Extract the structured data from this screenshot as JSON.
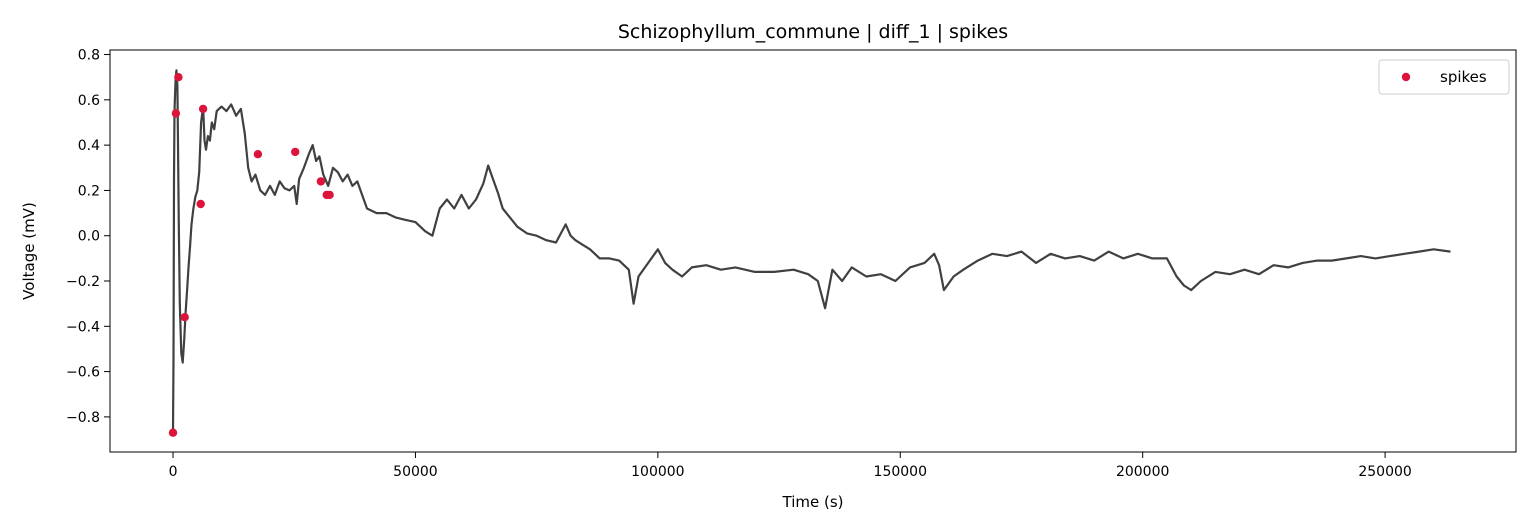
{
  "chart_data": {
    "type": "line",
    "title": "Schizophyllum_commune | diff_1 | spikes",
    "xlabel": "Time (s)",
    "ylabel": "Voltage (mV)",
    "xlim": [
      -13000,
      277000
    ],
    "ylim": [
      -0.955,
      0.82
    ],
    "xticks": [
      0,
      50000,
      100000,
      150000,
      200000,
      250000
    ],
    "xtick_labels": [
      "0",
      "50000",
      "100000",
      "150000",
      "200000",
      "250000"
    ],
    "yticks": [
      -0.8,
      -0.6,
      -0.4,
      -0.2,
      0.0,
      0.2,
      0.4,
      0.6,
      0.8
    ],
    "ytick_labels": [
      "−0.8",
      "−0.6",
      "−0.4",
      "−0.2",
      "0.0",
      "0.2",
      "0.4",
      "0.6",
      "0.8"
    ],
    "grid": false,
    "legend_position": "top-right",
    "series": [
      {
        "kind": "line",
        "color": "#404040",
        "x": [
          0,
          100,
          200,
          300,
          500,
          700,
          900,
          1000,
          1200,
          1400,
          1700,
          2000,
          2300,
          2600,
          2900,
          3200,
          3500,
          3800,
          4200,
          4600,
          5000,
          5400,
          5800,
          6200,
          6500,
          6800,
          7200,
          7600,
          8000,
          8500,
          9000,
          10000,
          11000,
          12000,
          13000,
          14000,
          14800,
          15500,
          16200,
          17000,
          18000,
          19000,
          20000,
          21000,
          22000,
          23000,
          24000,
          25000,
          25500,
          26000,
          27000,
          28000,
          28800,
          29500,
          30200,
          31000,
          32000,
          33000,
          34000,
          35000,
          36000,
          37000,
          38000,
          39000,
          40000,
          42000,
          44000,
          46000,
          48000,
          50000,
          52000,
          53500,
          55000,
          56500,
          58000,
          59500,
          61000,
          62500,
          64000,
          65000,
          66000,
          67000,
          68000,
          69500,
          71000,
          73000,
          75000,
          77000,
          79000,
          81000,
          82000,
          83000,
          84500,
          86000,
          88000,
          90000,
          92000,
          94000,
          95000,
          96000,
          98000,
          100000,
          101500,
          103000,
          105000,
          107000,
          110000,
          113000,
          116000,
          120000,
          124000,
          128000,
          131000,
          133000,
          134500,
          136000,
          138000,
          140000,
          143000,
          146000,
          149000,
          152000,
          155000,
          157000,
          158000,
          159000,
          161000,
          163000,
          166000,
          169000,
          172000,
          175000,
          178000,
          181000,
          184000,
          187000,
          190000,
          193000,
          196000,
          199000,
          202000,
          205000,
          207000,
          208500,
          210000,
          212000,
          215000,
          218000,
          221000,
          224000,
          227000,
          230000,
          233000,
          236000,
          239000,
          242000,
          245000,
          248000,
          251000,
          254000,
          257000,
          260000,
          263500
        ],
        "y": [
          -0.86,
          -0.55,
          0.25,
          0.55,
          0.68,
          0.73,
          0.66,
          0.45,
          0.05,
          -0.3,
          -0.52,
          -0.56,
          -0.46,
          -0.34,
          -0.24,
          -0.14,
          -0.05,
          0.05,
          0.12,
          0.17,
          0.2,
          0.28,
          0.5,
          0.57,
          0.42,
          0.38,
          0.44,
          0.42,
          0.5,
          0.47,
          0.55,
          0.57,
          0.55,
          0.58,
          0.53,
          0.56,
          0.45,
          0.3,
          0.24,
          0.27,
          0.2,
          0.18,
          0.22,
          0.18,
          0.24,
          0.21,
          0.2,
          0.22,
          0.14,
          0.25,
          0.3,
          0.36,
          0.4,
          0.33,
          0.35,
          0.27,
          0.22,
          0.3,
          0.28,
          0.24,
          0.27,
          0.22,
          0.24,
          0.18,
          0.12,
          0.1,
          0.1,
          0.08,
          0.07,
          0.06,
          0.02,
          0.0,
          0.12,
          0.16,
          0.12,
          0.18,
          0.12,
          0.16,
          0.23,
          0.31,
          0.25,
          0.19,
          0.12,
          0.08,
          0.04,
          0.01,
          0.0,
          -0.02,
          -0.03,
          0.05,
          0.0,
          -0.02,
          -0.04,
          -0.06,
          -0.1,
          -0.1,
          -0.11,
          -0.15,
          -0.3,
          -0.18,
          -0.12,
          -0.06,
          -0.12,
          -0.15,
          -0.18,
          -0.14,
          -0.13,
          -0.15,
          -0.14,
          -0.16,
          -0.16,
          -0.15,
          -0.17,
          -0.2,
          -0.32,
          -0.15,
          -0.2,
          -0.14,
          -0.18,
          -0.17,
          -0.2,
          -0.14,
          -0.12,
          -0.08,
          -0.13,
          -0.24,
          -0.18,
          -0.15,
          -0.11,
          -0.08,
          -0.09,
          -0.07,
          -0.12,
          -0.08,
          -0.1,
          -0.09,
          -0.11,
          -0.07,
          -0.1,
          -0.08,
          -0.1,
          -0.1,
          -0.18,
          -0.22,
          -0.24,
          -0.2,
          -0.16,
          -0.17,
          -0.15,
          -0.17,
          -0.13,
          -0.14,
          -0.12,
          -0.11,
          -0.11,
          -0.1,
          -0.09,
          -0.1,
          -0.09,
          -0.08,
          -0.07,
          -0.06,
          -0.07
        ]
      },
      {
        "kind": "scatter",
        "name": "spikes",
        "color": "#dc143c",
        "x": [
          0,
          600,
          1100,
          2400,
          5700,
          6200,
          17500,
          25200,
          30500,
          31700,
          32300
        ],
        "y": [
          -0.87,
          0.54,
          0.7,
          -0.36,
          0.14,
          0.56,
          0.36,
          0.37,
          0.24,
          0.18,
          0.18
        ]
      }
    ]
  }
}
